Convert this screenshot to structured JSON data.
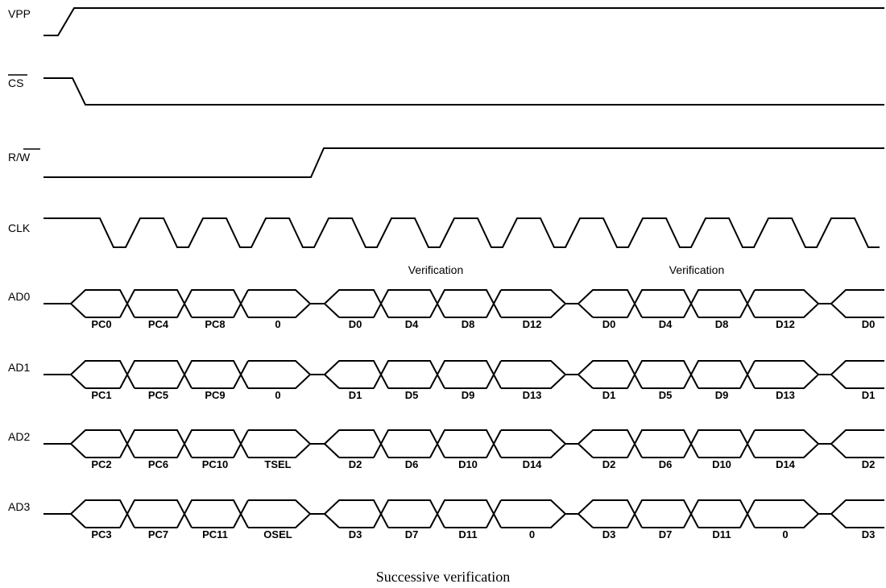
{
  "signals": [
    {
      "id": "vpp",
      "label": "VPP"
    },
    {
      "id": "cs",
      "label": "CS",
      "overbar": true
    },
    {
      "id": "rw",
      "label_a": "R/",
      "label_b": "W",
      "overbar_b": true
    },
    {
      "id": "clk",
      "label": "CLK"
    }
  ],
  "annotations": [
    "Verification",
    "Verification"
  ],
  "buses": [
    {
      "name": "AD0",
      "values": [
        "PC0",
        "PC4",
        "PC8",
        "0",
        "D0",
        "D4",
        "D8",
        "D12",
        "D0",
        "D4",
        "D8",
        "D12",
        "D0"
      ]
    },
    {
      "name": "AD1",
      "values": [
        "PC1",
        "PC5",
        "PC9",
        "0",
        "D1",
        "D5",
        "D9",
        "D13",
        "D1",
        "D5",
        "D9",
        "D13",
        "D1"
      ]
    },
    {
      "name": "AD2",
      "values": [
        "PC2",
        "PC6",
        "PC10",
        "TSEL",
        "D2",
        "D6",
        "D10",
        "D14",
        "D2",
        "D6",
        "D10",
        "D14",
        "D2"
      ]
    },
    {
      "name": "AD3",
      "values": [
        "PC3",
        "PC7",
        "PC11",
        "OSEL",
        "D3",
        "D7",
        "D11",
        "0",
        "D3",
        "D7",
        "D11",
        "0",
        "D3"
      ]
    }
  ],
  "caption": "Successive verification"
}
